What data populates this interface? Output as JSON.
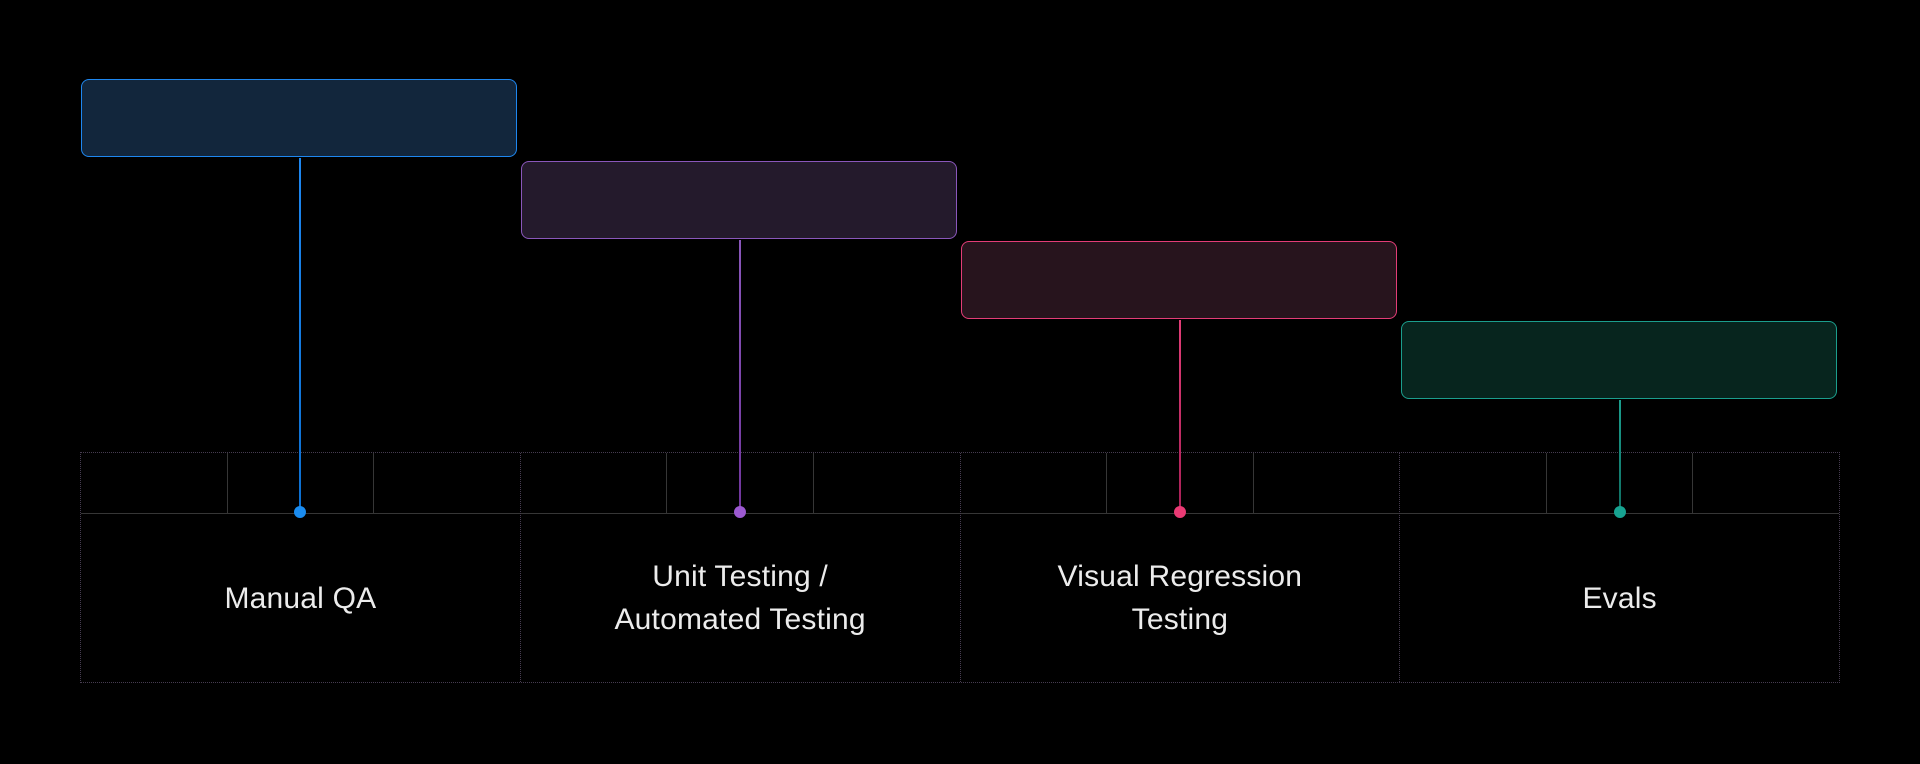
{
  "diagram": {
    "background": "#000000",
    "stages": [
      {
        "id": "manual-qa",
        "label": "Manual QA",
        "colors": {
          "border": "#1e87f0",
          "fill": "#12263c",
          "line": "#0c6fd0",
          "dot": "#1a8cf0"
        }
      },
      {
        "id": "unit-automated-testing",
        "label": "Unit Testing /\nAutomated Testing",
        "colors": {
          "border": "#8a57bb",
          "fill": "#241a2c",
          "line": "#70359c",
          "dot": "#9c59d1"
        }
      },
      {
        "id": "visual-regression-testing",
        "label": "Visual Regression\nTesting",
        "colors": {
          "border": "#e23d77",
          "fill": "#27141d",
          "line": "#a82057",
          "dot": "#ea3a74"
        }
      },
      {
        "id": "evals",
        "label": "Evals",
        "colors": {
          "border": "#1b9e8d",
          "fill": "#07251e",
          "line": "#0f6e62",
          "dot": "#17a391"
        }
      }
    ],
    "grid": {
      "sections": 4,
      "subcells_per_section": 3,
      "solid_line_color": "#363636",
      "dotted_line_color": "#463c50",
      "label_color": "#ececec"
    }
  }
}
